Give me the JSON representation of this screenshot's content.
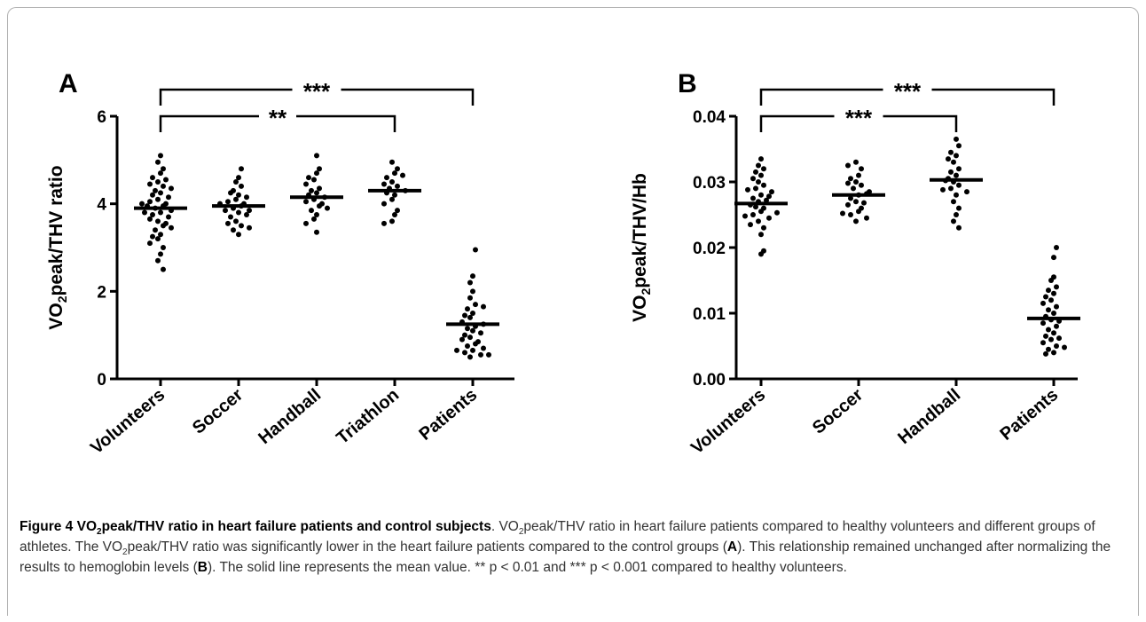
{
  "chart_data": [
    {
      "type": "scatter",
      "panel": "A",
      "ylabel_main": "VO",
      "ylabel_sub": "2",
      "ylabel_rest": "peak/THV ratio",
      "ylim": [
        0,
        6
      ],
      "yticks": [
        "0",
        "2",
        "4",
        "6"
      ],
      "categories": [
        "Volunteers",
        "Soccer",
        "Handball",
        "Triathlon",
        "Patients"
      ],
      "means": [
        3.9,
        3.95,
        4.15,
        4.3,
        1.25
      ],
      "series": [
        {
          "values": [
            5.1,
            4.95,
            4.8,
            4.7,
            4.6,
            4.5,
            4.45,
            4.4,
            4.3,
            4.25,
            4.2,
            4.1,
            4.05,
            4.0,
            3.95,
            3.9,
            3.85,
            3.8,
            3.75,
            3.7,
            3.6,
            3.5,
            3.4,
            3.3,
            3.2,
            3.1,
            3.0,
            2.85,
            2.7,
            2.5,
            4.35,
            4.15,
            3.95,
            3.65,
            3.45,
            3.25,
            4.55,
            4.0,
            3.8,
            3.55
          ]
        },
        {
          "values": [
            4.8,
            4.6,
            4.5,
            4.4,
            4.3,
            4.2,
            4.1,
            4.05,
            4.0,
            3.95,
            3.9,
            3.85,
            3.8,
            3.7,
            3.6,
            3.5,
            3.4,
            3.3,
            4.25,
            4.0,
            3.75,
            3.55,
            3.45,
            4.15,
            3.85
          ]
        },
        {
          "values": [
            5.1,
            4.8,
            4.7,
            4.55,
            4.45,
            4.35,
            4.25,
            4.2,
            4.15,
            4.1,
            4.05,
            4.0,
            3.95,
            3.85,
            3.75,
            3.65,
            3.55,
            3.35,
            4.6,
            4.3,
            3.9
          ]
        },
        {
          "values": [
            4.95,
            4.8,
            4.7,
            4.6,
            4.5,
            4.45,
            4.4,
            4.35,
            4.3,
            4.2,
            4.1,
            4.0,
            3.85,
            3.75,
            3.6,
            3.55,
            4.65,
            4.25
          ]
        },
        {
          "values": [
            2.95,
            2.35,
            2.2,
            2.0,
            1.85,
            1.7,
            1.6,
            1.5,
            1.45,
            1.4,
            1.3,
            1.2,
            1.15,
            1.1,
            1.0,
            0.95,
            0.9,
            0.85,
            0.8,
            0.75,
            0.7,
            0.65,
            0.6,
            0.55,
            0.5,
            1.25,
            1.05,
            0.65,
            1.65,
            0.55
          ]
        }
      ],
      "brackets": [
        {
          "from": 0,
          "to": 4,
          "label": "***",
          "level": 0
        },
        {
          "from": 0,
          "to": 3,
          "label": "**",
          "level": 1
        }
      ]
    },
    {
      "type": "scatter",
      "panel": "B",
      "ylabel_main": "VO",
      "ylabel_sub": "2",
      "ylabel_rest": "peak/THV/Hb",
      "ylim": [
        0,
        0.04
      ],
      "yticks": [
        "0.00",
        "0.01",
        "0.02",
        "0.03",
        "0.04"
      ],
      "categories": [
        "Volunteers",
        "Soccer",
        "Handball",
        "Patients"
      ],
      "means": [
        0.0267,
        0.028,
        0.0303,
        0.0092
      ],
      "series": [
        {
          "values": [
            0.0335,
            0.032,
            0.0315,
            0.031,
            0.0305,
            0.03,
            0.0295,
            0.029,
            0.0285,
            0.028,
            0.0275,
            0.027,
            0.0265,
            0.026,
            0.0255,
            0.025,
            0.0245,
            0.024,
            0.0235,
            0.023,
            0.022,
            0.0195,
            0.019,
            0.0325,
            0.0278,
            0.0262,
            0.0248,
            0.0272,
            0.0288,
            0.0253
          ]
        },
        {
          "values": [
            0.033,
            0.0325,
            0.032,
            0.031,
            0.0305,
            0.03,
            0.0295,
            0.029,
            0.0285,
            0.028,
            0.0275,
            0.027,
            0.0265,
            0.026,
            0.0255,
            0.025,
            0.0245,
            0.024,
            0.0298,
            0.0282,
            0.0268,
            0.0252
          ]
        },
        {
          "values": [
            0.0365,
            0.0355,
            0.0345,
            0.034,
            0.0335,
            0.033,
            0.032,
            0.031,
            0.0305,
            0.03,
            0.0295,
            0.029,
            0.0285,
            0.028,
            0.027,
            0.026,
            0.025,
            0.024,
            0.023,
            0.0315,
            0.0302,
            0.0288
          ]
        },
        {
          "values": [
            0.02,
            0.0185,
            0.0155,
            0.015,
            0.014,
            0.0135,
            0.013,
            0.012,
            0.0115,
            0.011,
            0.0105,
            0.01,
            0.0095,
            0.009,
            0.0085,
            0.008,
            0.0075,
            0.007,
            0.0065,
            0.006,
            0.0055,
            0.005,
            0.0045,
            0.004,
            0.0038,
            0.0125,
            0.0088,
            0.0062,
            0.0048
          ]
        }
      ],
      "brackets": [
        {
          "from": 0,
          "to": 3,
          "label": "***",
          "level": 0
        },
        {
          "from": 0,
          "to": 2,
          "label": "***",
          "level": 1
        }
      ]
    }
  ],
  "caption": {
    "figure_label": "Figure 4",
    "title_pre": "VO",
    "title_sub": "2",
    "title_post": "peak/THV ratio in heart failure patients and control subjects",
    "text_1": ". VO",
    "sub_1": "2",
    "text_2": "peak/THV ratio in heart failure patients compared to healthy volunteers and different groups of athletes. The VO",
    "sub_2": "2",
    "text_3": "peak/THV ratio was significantly lower in the heart failure patients compared to the control groups (",
    "bold_a": "A",
    "text_4": "). This relationship remained unchanged after normalizing the results to hemoglobin levels (",
    "bold_b": "B",
    "text_5": "). The solid line represents the mean value. ** p < 0.01 and *** p < 0.001 compared to healthy volunteers."
  }
}
